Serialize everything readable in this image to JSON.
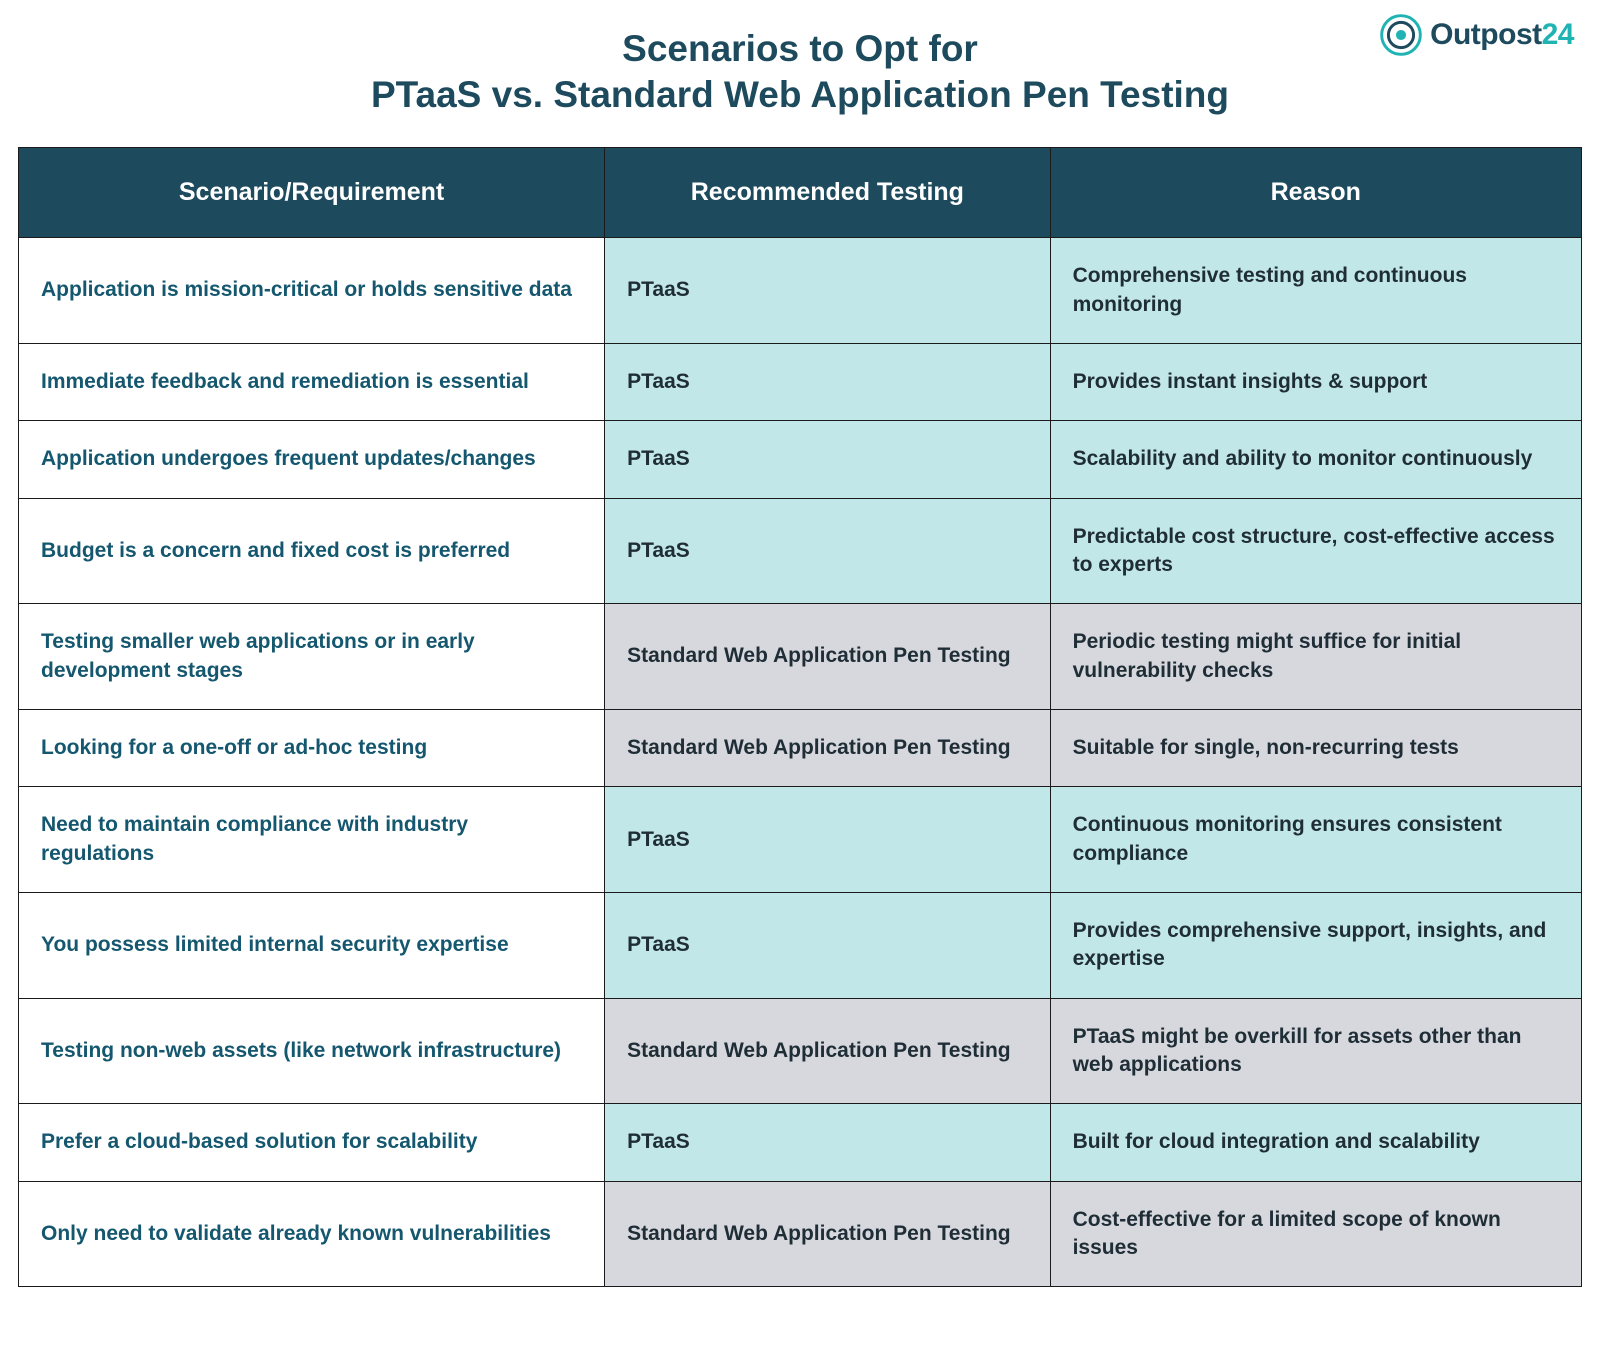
{
  "brand": {
    "name_prefix": "Outpost",
    "name_suffix": "24",
    "logo_teal": "#1fb3b3",
    "logo_dark": "#1d4a5d"
  },
  "title_line1": "Scenarios to Opt for",
  "title_line2": "PTaaS vs. Standard Web Application Pen Testing",
  "columns": {
    "scenario": "Scenario/Requirement",
    "recommended": "Recommended Testing",
    "reason": "Reason"
  },
  "style": {
    "header_bg": "#1d4a5d",
    "header_fg": "#ffffff",
    "title_color": "#1d4a5d",
    "scenario_text_color": "#14576e",
    "body_text_color": "#1f2d36",
    "ptaas_row_bg": "#c2e7e9",
    "standard_row_bg": "#d7d8dd",
    "border_color": "#1b1b1b",
    "title_fontsize_pt": 28,
    "header_fontsize_pt": 19,
    "cell_fontsize_pt": 16,
    "column_widths_pct": [
      37.5,
      28.5,
      34.0
    ]
  },
  "rows": [
    {
      "type": "ptaas",
      "scenario": "Application is mission-critical or holds sensitive data",
      "recommended": "PTaaS",
      "reason": "Comprehensive testing and continuous monitoring"
    },
    {
      "type": "ptaas",
      "scenario": "Immediate feedback and remediation is essential",
      "recommended": "PTaaS",
      "reason": "Provides instant insights & support"
    },
    {
      "type": "ptaas",
      "scenario": "Application undergoes frequent updates/changes",
      "recommended": "PTaaS",
      "reason": "Scalability and ability to monitor continuously"
    },
    {
      "type": "ptaas",
      "scenario": "Budget is a concern and fixed cost is preferred",
      "recommended": "PTaaS",
      "reason": "Predictable cost structure, cost-effective access to experts"
    },
    {
      "type": "std",
      "scenario": "Testing smaller web applications or in early development stages",
      "recommended": "Standard Web Application Pen Testing",
      "reason": "Periodic testing might suffice for initial vulnerability checks"
    },
    {
      "type": "std",
      "scenario": "Looking for a one-off or ad-hoc testing",
      "recommended": "Standard Web Application Pen Testing",
      "reason": "Suitable for single, non-recurring tests"
    },
    {
      "type": "ptaas",
      "scenario": "Need to maintain compliance with industry regulations",
      "recommended": "PTaaS",
      "reason": "Continuous monitoring ensures consistent compliance"
    },
    {
      "type": "ptaas",
      "scenario": "You possess limited internal security expertise",
      "recommended": "PTaaS",
      "reason": "Provides comprehensive support, insights, and expertise"
    },
    {
      "type": "std",
      "scenario": "Testing non-web assets (like network infrastructure)",
      "recommended": "Standard Web Application Pen Testing",
      "reason": "PTaaS might be overkill for assets other than web applications"
    },
    {
      "type": "ptaas",
      "scenario": "Prefer a cloud-based solution for scalability",
      "recommended": "PTaaS",
      "reason": "Built for cloud integration and scalability"
    },
    {
      "type": "std",
      "scenario": "Only need to validate already known vulnerabilities",
      "recommended": "Standard Web Application Pen Testing",
      "reason": "Cost-effective for a limited scope of known issues"
    }
  ]
}
